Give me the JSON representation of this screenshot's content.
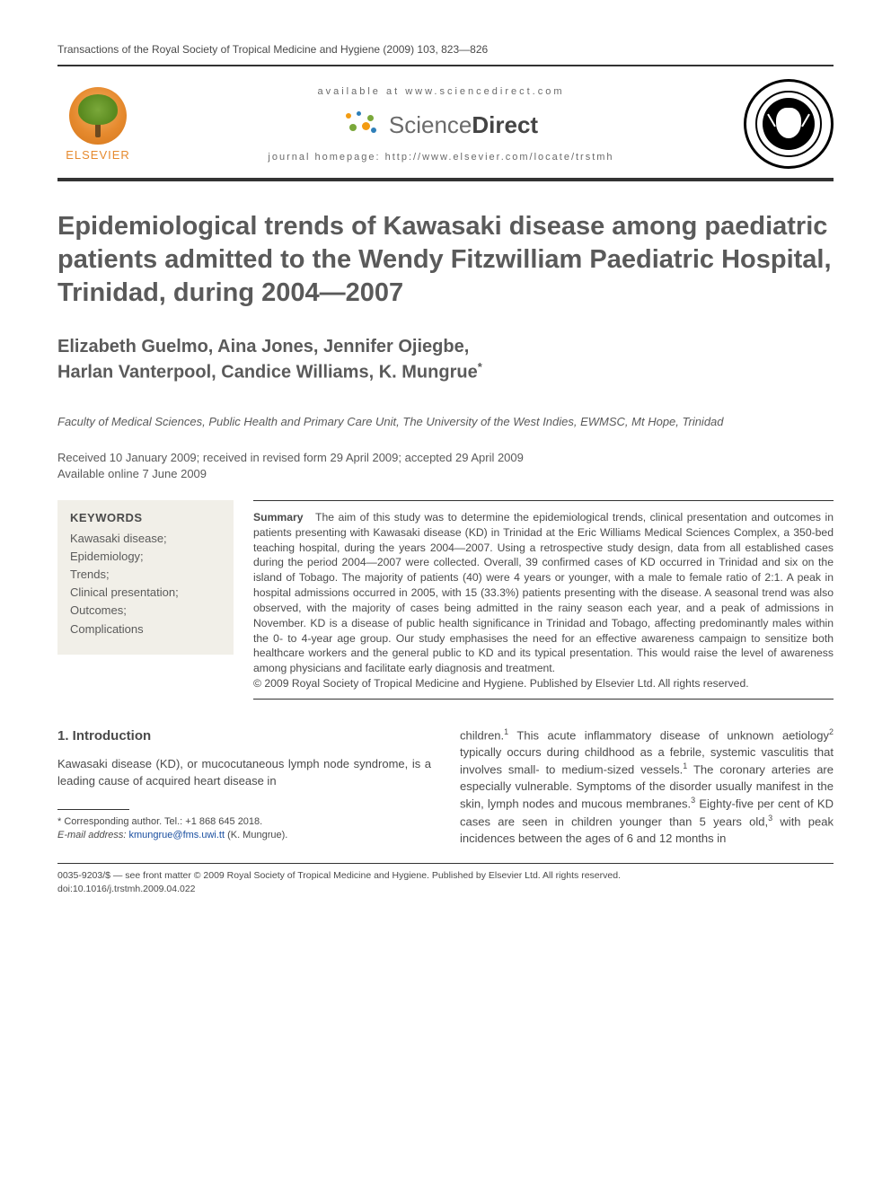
{
  "header": {
    "journal_ref": "Transactions of the Royal Society of Tropical Medicine and Hygiene (2009) 103, 823—826",
    "available_at": "available at www.sciencedirect.com",
    "sd_brand": {
      "light": "Science",
      "bold": "Direct"
    },
    "homepage": "journal homepage: http://www.elsevier.com/locate/trstmh",
    "publisher_label": "ELSEVIER",
    "sd_dot_colors": {
      "orange": "#f39c12",
      "green": "#7aa83a",
      "blue": "#2e7fb8"
    }
  },
  "article": {
    "title": "Epidemiological trends of Kawasaki disease among paediatric patients admitted to the Wendy Fitzwilliam Paediatric Hospital, Trinidad, during 2004—2007",
    "authors_line1": "Elizabeth Guelmo, Aina Jones, Jennifer Ojiegbe,",
    "authors_line2": "Harlan Vanterpool, Candice Williams, K. Mungrue",
    "corr_marker": "*",
    "affiliation": "Faculty of Medical Sciences, Public Health and Primary Care Unit, The University of the West Indies, EWMSC, Mt Hope, Trinidad",
    "received": "Received 10 January 2009; received in revised form 29 April 2009; accepted 29 April 2009",
    "available_online": "Available online 7 June 2009"
  },
  "keywords": {
    "heading": "KEYWORDS",
    "items": "Kawasaki disease;\nEpidemiology;\nTrends;\nClinical presentation;\nOutcomes;\nComplications"
  },
  "summary": {
    "label": "Summary",
    "text": "The aim of this study was to determine the epidemiological trends, clinical presentation and outcomes in patients presenting with Kawasaki disease (KD) in Trinidad at the Eric Williams Medical Sciences Complex, a 350-bed teaching hospital, during the years 2004—2007. Using a retrospective study design, data from all established cases during the period 2004—2007 were collected. Overall, 39 confirmed cases of KD occurred in Trinidad and six on the island of Tobago. The majority of patients (40) were 4 years or younger, with a male to female ratio of 2:1. A peak in hospital admissions occurred in 2005, with 15 (33.3%) patients presenting with the disease. A seasonal trend was also observed, with the majority of cases being admitted in the rainy season each year, and a peak of admissions in November. KD is a disease of public health significance in Trinidad and Tobago, affecting predominantly males within the 0- to 4-year age group. Our study emphasises the need for an effective awareness campaign to sensitize both healthcare workers and the general public to KD and its typical presentation. This would raise the level of awareness among physicians and facilitate early diagnosis and treatment.",
    "copyright": "© 2009 Royal Society of Tropical Medicine and Hygiene. Published by Elsevier Ltd. All rights reserved."
  },
  "body": {
    "section_heading": "1. Introduction",
    "col1_p1": "Kawasaki disease (KD), or mucocutaneous lymph node syndrome, is a leading cause of acquired heart disease in",
    "col2_p1a": "children.",
    "col2_p1b": " This acute inflammatory disease of unknown aetiology",
    "col2_p1c": " typically occurs during childhood as a febrile, systemic vasculitis that involves small- to medium-sized vessels.",
    "col2_p1d": " The coronary arteries are especially vulnerable. Symptoms of the disorder usually manifest in the skin, lymph nodes and mucous membranes.",
    "col2_p1e": " Eighty-five per cent of KD cases are seen in children younger than 5 years old,",
    "col2_p1f": " with peak incidences between the ages of 6 and 12 months in",
    "refs": {
      "r1": "1",
      "r2": "2",
      "r3": "3"
    }
  },
  "footnote": {
    "corr": "* Corresponding author. Tel.: +1 868 645 2018.",
    "email_label": "E-mail address: ",
    "email": "kmungrue@fms.uwi.tt",
    "email_paren": " (K. Mungrue)."
  },
  "footer": {
    "line1": "0035-9203/$ — see front matter © 2009 Royal Society of Tropical Medicine and Hygiene. Published by Elsevier Ltd. All rights reserved.",
    "line2": "doi:10.1016/j.trstmh.2009.04.022"
  },
  "colors": {
    "text": "#4a4a4a",
    "link": "#1a4fa0",
    "kw_bg": "#f1efe8",
    "elsevier_orange": "#e68a2e"
  }
}
